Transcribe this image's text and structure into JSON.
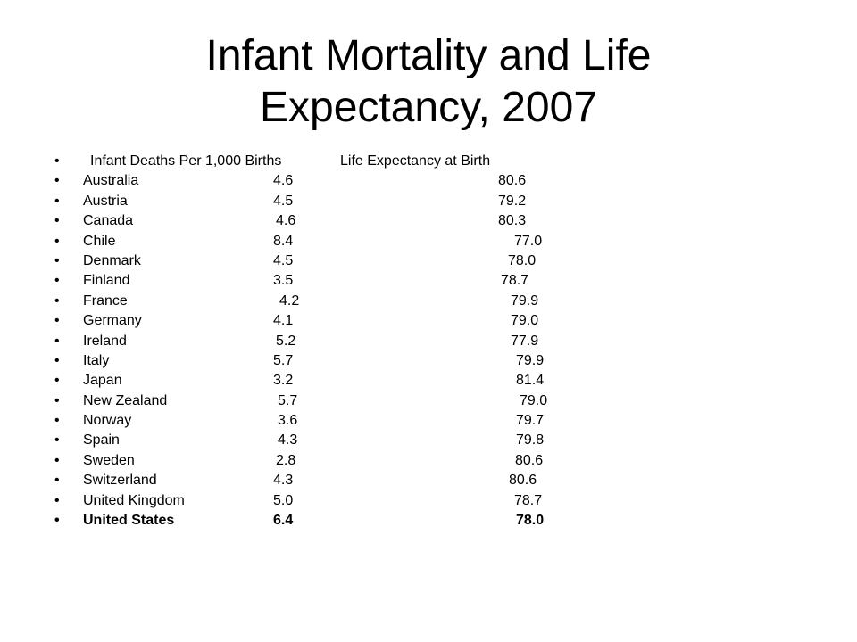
{
  "title": {
    "line1": "Infant Mortality and Life",
    "line2": "Expectancy, 2007"
  },
  "header": {
    "bullet": "•",
    "infant_deaths": "Infant Deaths Per 1,000 Births",
    "life_expectancy": "Life Expectancy at Birth"
  },
  "rows": [
    {
      "bullet": "•",
      "country": "Australia",
      "deaths": "4.6",
      "life": "80.6",
      "bold": false
    },
    {
      "bullet": "•",
      "country": "Austria",
      "deaths": "4.5",
      "life": "79.2",
      "bold": false
    },
    {
      "bullet": "•",
      "country": "Canada",
      "deaths": "4.6",
      "life": "80.3",
      "bold": false
    },
    {
      "bullet": "•",
      "country": "Chile",
      "deaths": "8.4",
      "life": "77.0",
      "bold": false
    },
    {
      "bullet": "•",
      "country": "Denmark",
      "deaths": "4.5",
      "life": "78.0",
      "bold": false
    },
    {
      "bullet": "•",
      "country": "Finland",
      "deaths": "3.5",
      "life": "78.7",
      "bold": false
    },
    {
      "bullet": "•",
      "country": "France",
      "deaths": "4.2",
      "life": "79.9",
      "bold": false
    },
    {
      "bullet": "•",
      "country": "Germany",
      "deaths": "4.1",
      "life": "79.0",
      "bold": false
    },
    {
      "bullet": "•",
      "country": "Ireland",
      "deaths": "5.2",
      "life": "77.9",
      "bold": false
    },
    {
      "bullet": "•",
      "country": "Italy",
      "deaths": "5.7",
      "life": "79.9",
      "bold": false
    },
    {
      "bullet": "•",
      "country": "Japan",
      "deaths": "3.2",
      "life": "81.4",
      "bold": false
    },
    {
      "bullet": "•",
      "country": "New Zealand",
      "deaths": "5.7",
      "life": "79.0",
      "bold": false
    },
    {
      "bullet": "•",
      "country": "Norway",
      "deaths": "3.6",
      "life": "79.7",
      "bold": false
    },
    {
      "bullet": "•",
      "country": "Spain",
      "deaths": "4.3",
      "life": "79.8",
      "bold": false
    },
    {
      "bullet": "•",
      "country": "Sweden",
      "deaths": "2.8",
      "life": "80.6",
      "bold": false
    },
    {
      "bullet": "•",
      "country": "Switzerland",
      "deaths": "4.3",
      "life": "80.6",
      "bold": false
    },
    {
      "bullet": "•",
      "country": "United Kingdom",
      "deaths": "5.0",
      "life": "78.7",
      "bold": false
    },
    {
      "bullet": "•",
      "country": "United States",
      "deaths": "6.4",
      "life": "78.0",
      "bold": true
    }
  ]
}
